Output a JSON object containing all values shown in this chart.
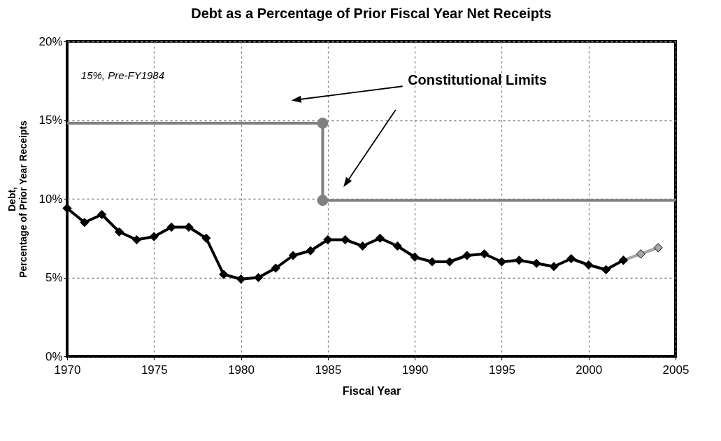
{
  "chart_data": {
    "type": "line",
    "title": "Debt as a Percentage of Prior Fiscal Year Net Receipts",
    "xlabel": "Fiscal Year",
    "ylabel": "Debt, Percentage of Prior Year Receipts",
    "xlim": [
      1970,
      2005
    ],
    "xticks": [
      1970,
      1975,
      1980,
      1985,
      1990,
      1995,
      2000,
      2005
    ],
    "ylim": [
      0,
      20
    ],
    "yticks": [
      {
        "value": 0,
        "label": "0%"
      },
      {
        "value": 5,
        "label": "5%"
      },
      {
        "value": 10,
        "label": "10%"
      },
      {
        "value": 15,
        "label": "15%"
      },
      {
        "value": 20,
        "label": "20%"
      }
    ],
    "grid": true,
    "marker": "diamond",
    "line_style": "solid",
    "annotations": [
      "15%, Pre-FY1984",
      "Constitutional Limits"
    ],
    "series": [
      {
        "color": "#a6a6a6",
        "x": [
          2002,
          2003,
          2004
        ],
        "values": [
          6.1,
          6.5,
          6.9
        ]
      },
      {
        "color": "#000000",
        "x": [
          1970,
          1971,
          1972,
          1973,
          1974,
          1975,
          1976,
          1977,
          1978,
          1979,
          1980,
          1981,
          1982,
          1983,
          1984,
          1985,
          1986,
          1987,
          1988,
          1989,
          1990,
          1991,
          1992,
          1993,
          1994,
          1995,
          1996,
          1997,
          1998,
          1999,
          2000,
          2001,
          2002
        ],
        "values": [
          9.4,
          8.5,
          9.0,
          7.9,
          7.4,
          7.6,
          8.2,
          8.2,
          7.5,
          5.2,
          4.9,
          5.0,
          5.6,
          6.4,
          6.7,
          7.4,
          7.4,
          7.0,
          7.5,
          7.0,
          6.3,
          6.0,
          6.0,
          6.4,
          6.5,
          6.0,
          6.1,
          5.9,
          5.7,
          6.2,
          5.8,
          5.5,
          6.1
        ]
      },
      {
        "color": "#808080",
        "marker": "none",
        "x": [
          1970,
          1984.7,
          1984.7,
          2005
        ],
        "values": [
          14.8,
          14.8,
          9.9,
          9.9
        ]
      },
      {
        "type": "scatter",
        "color": "#808080",
        "marker": "circle",
        "x": [
          1984.7,
          1984.7
        ],
        "values": [
          14.8,
          9.9
        ]
      }
    ]
  }
}
